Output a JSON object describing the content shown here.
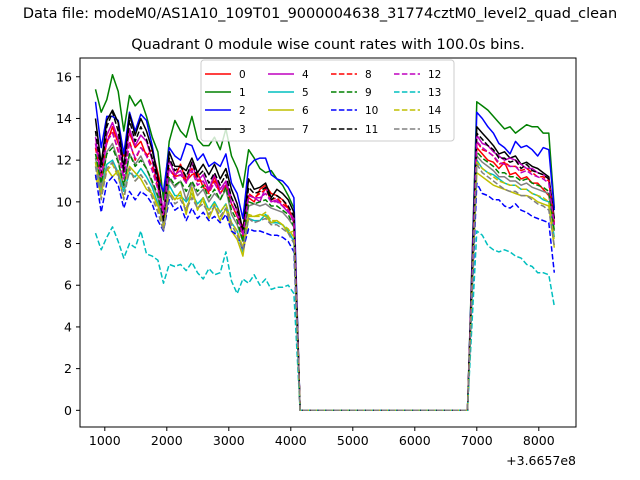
{
  "chart_data": {
    "type": "line",
    "suptitle": "Data file: modeM0/AS1A10_109T01_9000004638_31774cztM0_level2_quad_clean",
    "title": "Quadrant 0 module wise count rates with 100.0s bins.",
    "xlabel": "",
    "ylabel": "",
    "x_offset_label": "+3.6657e8",
    "xlim": [
      600,
      8600
    ],
    "ylim": [
      -0.8,
      16.9
    ],
    "xticks": [
      "1000",
      "2000",
      "3000",
      "4000",
      "5000",
      "6000",
      "7000",
      "8000"
    ],
    "yticks": [
      "0",
      "2",
      "4",
      "6",
      "8",
      "10",
      "12",
      "14",
      "16"
    ],
    "legend_location": "upper-center",
    "series": [
      {
        "name": "0",
        "color": "#ff0000",
        "dash": "solid",
        "v1": [
          12.8,
          11.8,
          12.8,
          13.6,
          12.8,
          12.2,
          13.3,
          12.6,
          12.9,
          12.2,
          12.5,
          11.4,
          10.3,
          11.6,
          11.2,
          11.8,
          11.0,
          11.3,
          11.4,
          10.7,
          10.5,
          11.2,
          10.4,
          10.8,
          9.9,
          9.3,
          8.8,
          10.2,
          10.0,
          10.6,
          10.8,
          10.4,
          10.3,
          10.1,
          9.7,
          9.1
        ],
        "v2": [
          12.6,
          12.3,
          12.0,
          11.9,
          11.6,
          11.9,
          11.3,
          11.4,
          11.1,
          11.2,
          10.9,
          10.9,
          10.6,
          10.3,
          8.9
        ]
      },
      {
        "name": "1",
        "color": "#008000",
        "dash": "solid",
        "v1": [
          15.4,
          14.3,
          14.9,
          16.1,
          15.3,
          13.4,
          15.1,
          14.6,
          14.9,
          14.1,
          13.1,
          12.4,
          10.1,
          12.9,
          13.9,
          13.4,
          13.1,
          14.1,
          13.0,
          12.7,
          12.7,
          13.1,
          12.5,
          13.5,
          12.2,
          11.6,
          10.7,
          12.5,
          12.1,
          11.6,
          11.4,
          11.5,
          11.1,
          10.8,
          10.3,
          9.7
        ],
        "v2": [
          14.8,
          14.6,
          14.4,
          14.1,
          13.8,
          13.5,
          13.6,
          13.3,
          13.5,
          13.7,
          13.6,
          13.6,
          13.3,
          13.3,
          9.7
        ]
      },
      {
        "name": "2",
        "color": "#0000ff",
        "dash": "solid",
        "v1": [
          14.8,
          12.6,
          14.1,
          14.1,
          13.9,
          12.3,
          14.3,
          13.4,
          14.2,
          13.9,
          12.7,
          11.1,
          10.5,
          12.6,
          12.2,
          12.0,
          12.8,
          12.7,
          12.0,
          12.3,
          11.7,
          11.9,
          11.7,
          12.3,
          10.9,
          10.4,
          9.2,
          11.7,
          12.0,
          12.1,
          12.1,
          11.3,
          11.1,
          11.0,
          10.7,
          10.2
        ],
        "v2": [
          14.3,
          14.0,
          13.6,
          13.3,
          12.8,
          12.6,
          12.3,
          12.9,
          12.6,
          12.7,
          12.5,
          12.2,
          12.6,
          12.5,
          9.6
        ]
      },
      {
        "name": "3",
        "color": "#000000",
        "dash": "solid",
        "v1": [
          14.0,
          11.8,
          13.9,
          14.4,
          13.8,
          11.6,
          14.2,
          13.2,
          14.0,
          13.4,
          12.5,
          11.2,
          9.4,
          12.4,
          11.7,
          11.7,
          11.5,
          12.1,
          11.4,
          11.8,
          11.3,
          11.8,
          11.1,
          11.6,
          10.6,
          9.9,
          8.6,
          11.1,
          10.6,
          10.7,
          10.9,
          10.2,
          10.6,
          10.4,
          10.1,
          9.5
        ],
        "v2": [
          13.6,
          13.3,
          13.0,
          12.7,
          12.3,
          12.4,
          12.1,
          12.2,
          11.8,
          11.9,
          11.7,
          11.6,
          11.4,
          11.2,
          9.2
        ]
      },
      {
        "name": "4",
        "color": "#bf00bf",
        "dash": "solid",
        "v1": [
          13.1,
          11.2,
          13.2,
          13.8,
          13.0,
          11.4,
          13.5,
          12.7,
          13.2,
          12.9,
          12.0,
          10.7,
          9.6,
          12.0,
          11.3,
          11.5,
          10.9,
          11.9,
          11.0,
          11.3,
          10.6,
          11.3,
          10.6,
          11.0,
          10.2,
          9.6,
          8.4,
          10.3,
          10.2,
          10.0,
          10.7,
          10.0,
          10.1,
          9.8,
          9.5,
          9.2
        ],
        "v2": [
          13.2,
          12.8,
          12.7,
          12.4,
          12.2,
          12.0,
          12.1,
          12.0,
          11.8,
          11.6,
          11.6,
          11.4,
          11.3,
          11.1,
          9.0
        ]
      },
      {
        "name": "5",
        "color": "#00bfbf",
        "dash": "solid",
        "v1": [
          11.9,
          10.5,
          11.8,
          12.0,
          11.4,
          10.5,
          11.4,
          11.2,
          11.6,
          11.2,
          10.7,
          9.9,
          8.9,
          10.8,
          10.3,
          10.3,
          10.0,
          10.4,
          9.9,
          10.2,
          9.6,
          10.0,
          9.5,
          9.9,
          9.0,
          8.6,
          7.6,
          9.2,
          9.1,
          9.1,
          9.4,
          9.0,
          9.0,
          8.9,
          8.6,
          8.1
        ],
        "v2": [
          12.0,
          11.6,
          11.4,
          11.3,
          11.1,
          10.9,
          10.8,
          10.8,
          10.6,
          10.6,
          10.4,
          10.3,
          10.1,
          10.0,
          8.3
        ]
      },
      {
        "name": "6",
        "color": "#bfbf00",
        "dash": "solid",
        "v1": [
          11.2,
          10.4,
          11.6,
          11.2,
          11.5,
          10.8,
          11.7,
          11.4,
          11.1,
          10.6,
          10.4,
          9.8,
          9.0,
          10.5,
          10.1,
          10.5,
          9.4,
          10.7,
          9.6,
          10.2,
          9.2,
          9.8,
          9.1,
          9.7,
          8.6,
          8.2,
          7.4,
          9.3,
          9.3,
          9.4,
          9.3,
          9.0,
          9.1,
          8.9,
          8.5,
          8.6
        ],
        "v2": [
          11.4,
          11.2,
          11.0,
          10.8,
          10.7,
          10.6,
          10.5,
          10.4,
          10.3,
          10.3,
          10.2,
          10.0,
          9.9,
          9.8,
          7.8
        ]
      },
      {
        "name": "7",
        "color": "#808080",
        "dash": "solid",
        "v1": [
          12.1,
          10.7,
          12.4,
          12.8,
          12.0,
          10.7,
          12.3,
          11.8,
          12.2,
          11.6,
          10.9,
          10.2,
          8.9,
          11.1,
          10.7,
          11.0,
          10.1,
          10.9,
          10.3,
          10.6,
          10.0,
          10.4,
          10.1,
          10.6,
          9.4,
          8.9,
          8.1,
          9.8,
          9.9,
          9.8,
          9.9,
          9.7,
          9.6,
          9.5,
          9.2,
          8.8
        ],
        "v2": [
          12.2,
          11.9,
          11.7,
          11.5,
          11.2,
          11.2,
          11.0,
          11.0,
          10.8,
          10.9,
          10.7,
          10.6,
          10.5,
          10.4,
          8.6
        ]
      },
      {
        "name": "8",
        "color": "#ff0000",
        "dash": "dashed",
        "v1": [
          12.6,
          11.0,
          13.0,
          13.4,
          12.4,
          11.1,
          12.9,
          12.0,
          12.6,
          12.3,
          11.7,
          10.7,
          9.3,
          11.6,
          11.2,
          11.3,
          11.0,
          11.6,
          11.0,
          11.0,
          10.4,
          11.0,
          10.4,
          10.8,
          9.9,
          9.4,
          8.3,
          10.4,
          10.2,
          10.4,
          10.6,
          10.1,
          10.2,
          9.9,
          9.7,
          9.0
        ],
        "v2": [
          12.9,
          12.5,
          12.4,
          12.2,
          11.8,
          11.9,
          11.7,
          11.7,
          11.5,
          11.6,
          11.4,
          11.2,
          11.2,
          11.0,
          8.9
        ]
      },
      {
        "name": "9",
        "color": "#008000",
        "dash": "dashed",
        "v1": [
          12.3,
          10.9,
          12.3,
          12.6,
          11.9,
          10.8,
          12.3,
          11.7,
          12.0,
          11.6,
          11.0,
          10.3,
          9.2,
          11.2,
          10.8,
          11.0,
          10.5,
          11.0,
          10.5,
          10.8,
          10.2,
          10.6,
          10.1,
          10.7,
          9.6,
          9.1,
          8.1,
          10.0,
          9.9,
          10.0,
          10.1,
          9.8,
          9.8,
          9.6,
          9.4,
          8.8
        ],
        "v2": [
          12.4,
          12.1,
          11.9,
          11.7,
          11.4,
          11.4,
          11.2,
          11.2,
          11.0,
          11.1,
          10.9,
          10.8,
          10.7,
          10.5,
          8.6
        ]
      },
      {
        "name": "10",
        "color": "#0000ff",
        "dash": "dashed",
        "v1": [
          11.3,
          9.5,
          10.9,
          11.2,
          10.8,
          9.7,
          10.5,
          10.1,
          10.5,
          10.3,
          9.9,
          9.1,
          8.6,
          10.1,
          9.6,
          9.8,
          9.1,
          9.7,
          9.2,
          9.5,
          9.1,
          9.3,
          9.0,
          9.4,
          8.6,
          8.4,
          7.7,
          8.7,
          8.6,
          8.6,
          8.5,
          8.4,
          8.4,
          8.3,
          8.1,
          7.6
        ],
        "v2": [
          10.9,
          10.4,
          10.3,
          10.1,
          10.1,
          9.8,
          9.7,
          9.9,
          9.6,
          9.5,
          9.3,
          9.2,
          9.1,
          9.0,
          6.6
        ]
      },
      {
        "name": "11",
        "color": "#000000",
        "dash": "dashed",
        "v1": [
          13.4,
          11.4,
          13.6,
          14.3,
          13.4,
          11.4,
          13.9,
          12.9,
          13.6,
          13.0,
          12.1,
          11.0,
          9.1,
          12.1,
          11.5,
          11.7,
          11.2,
          11.9,
          11.2,
          11.5,
          10.9,
          11.4,
          10.8,
          11.3,
          10.2,
          9.6,
          8.5,
          10.7,
          10.4,
          10.5,
          10.7,
          10.1,
          10.3,
          10.1,
          9.8,
          9.3
        ],
        "v2": [
          13.3,
          13.0,
          12.7,
          12.5,
          12.1,
          12.1,
          11.9,
          12.0,
          11.6,
          11.8,
          11.5,
          11.4,
          11.3,
          11.1,
          9.1
        ]
      },
      {
        "name": "12",
        "color": "#bf00bf",
        "dash": "dashed",
        "v1": [
          12.8,
          11.2,
          12.9,
          13.3,
          12.5,
          11.1,
          12.8,
          12.1,
          12.6,
          12.2,
          11.5,
          10.6,
          9.4,
          11.6,
          11.1,
          11.3,
          10.9,
          11.5,
          10.8,
          11.0,
          10.5,
          10.9,
          10.4,
          10.9,
          9.9,
          9.4,
          8.4,
          10.3,
          10.2,
          10.2,
          10.4,
          10.0,
          10.0,
          9.8,
          9.6,
          9.0
        ],
        "v2": [
          12.9,
          12.6,
          12.4,
          12.2,
          11.9,
          11.8,
          11.7,
          11.7,
          11.4,
          11.5,
          11.3,
          11.2,
          11.1,
          10.9,
          8.9
        ]
      },
      {
        "name": "13",
        "color": "#00bfbf",
        "dash": "dashed",
        "v1": [
          8.5,
          7.7,
          8.3,
          8.8,
          8.1,
          7.3,
          8.0,
          7.8,
          8.6,
          7.5,
          7.4,
          7.2,
          6.1,
          7.0,
          6.9,
          7.0,
          6.7,
          7.1,
          6.6,
          6.3,
          6.8,
          6.5,
          6.6,
          7.6,
          6.2,
          5.6,
          6.3,
          6.1,
          6.5,
          6.0,
          6.3,
          5.8,
          5.9,
          5.9,
          6.0,
          5.6
        ],
        "v2": [
          8.6,
          8.4,
          7.9,
          7.7,
          7.6,
          7.7,
          7.6,
          7.4,
          7.3,
          7.0,
          6.9,
          6.6,
          6.6,
          6.5,
          5.0
        ]
      },
      {
        "name": "14",
        "color": "#bfbf00",
        "dash": "dashed",
        "v1": [
          11.9,
          10.2,
          11.5,
          11.8,
          11.2,
          10.2,
          11.6,
          11.0,
          11.3,
          10.9,
          10.4,
          9.7,
          8.7,
          10.5,
          10.1,
          10.2,
          9.7,
          10.4,
          9.7,
          10.0,
          9.6,
          9.9,
          9.5,
          9.9,
          9.0,
          8.6,
          7.8,
          9.4,
          9.3,
          9.3,
          9.5,
          9.1,
          9.1,
          8.9,
          8.7,
          8.3
        ],
        "v2": [
          11.9,
          11.6,
          11.4,
          11.2,
          11.0,
          10.9,
          10.8,
          10.8,
          10.6,
          10.6,
          10.4,
          10.3,
          10.2,
          10.0,
          8.1
        ]
      },
      {
        "name": "15",
        "color": "#808080",
        "dash": "dashed",
        "v1": [
          11.7,
          10.1,
          11.6,
          11.9,
          11.3,
          10.1,
          11.6,
          11.0,
          11.3,
          10.9,
          10.2,
          9.5,
          8.6,
          10.4,
          9.9,
          10.1,
          9.6,
          10.2,
          9.7,
          9.9,
          9.4,
          9.8,
          9.3,
          9.7,
          8.9,
          8.4,
          7.7,
          9.2,
          9.0,
          9.1,
          9.2,
          8.9,
          8.9,
          8.7,
          8.5,
          8.0
        ],
        "v2": [
          11.8,
          11.4,
          11.2,
          11.0,
          10.8,
          10.6,
          10.5,
          10.5,
          10.3,
          10.3,
          10.1,
          9.9,
          9.8,
          9.6,
          7.9
        ]
      }
    ]
  }
}
